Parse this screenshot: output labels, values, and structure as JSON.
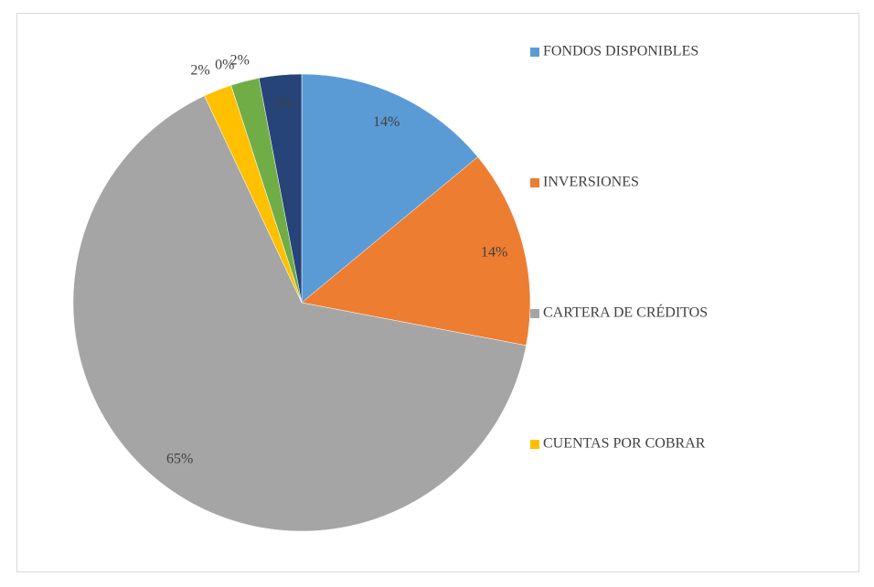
{
  "chart_data": {
    "type": "pie",
    "categories": [
      "FONDOS DISPONIBLES",
      "INVERSIONES",
      "CARTERA DE CRÉDITOS",
      "CUENTAS POR COBRAR",
      null,
      null,
      null
    ],
    "values": [
      14,
      14,
      65,
      2,
      0,
      2,
      3
    ],
    "value_labels": [
      "14%",
      "14%",
      "65%",
      "2%",
      "0%",
      "2%",
      "3%"
    ],
    "colors": [
      "#5b9bd5",
      "#ed7d31",
      "#a5a5a5",
      "#ffc000",
      "#4472c4",
      "#70ad47",
      "#264478"
    ],
    "legend": "right"
  }
}
